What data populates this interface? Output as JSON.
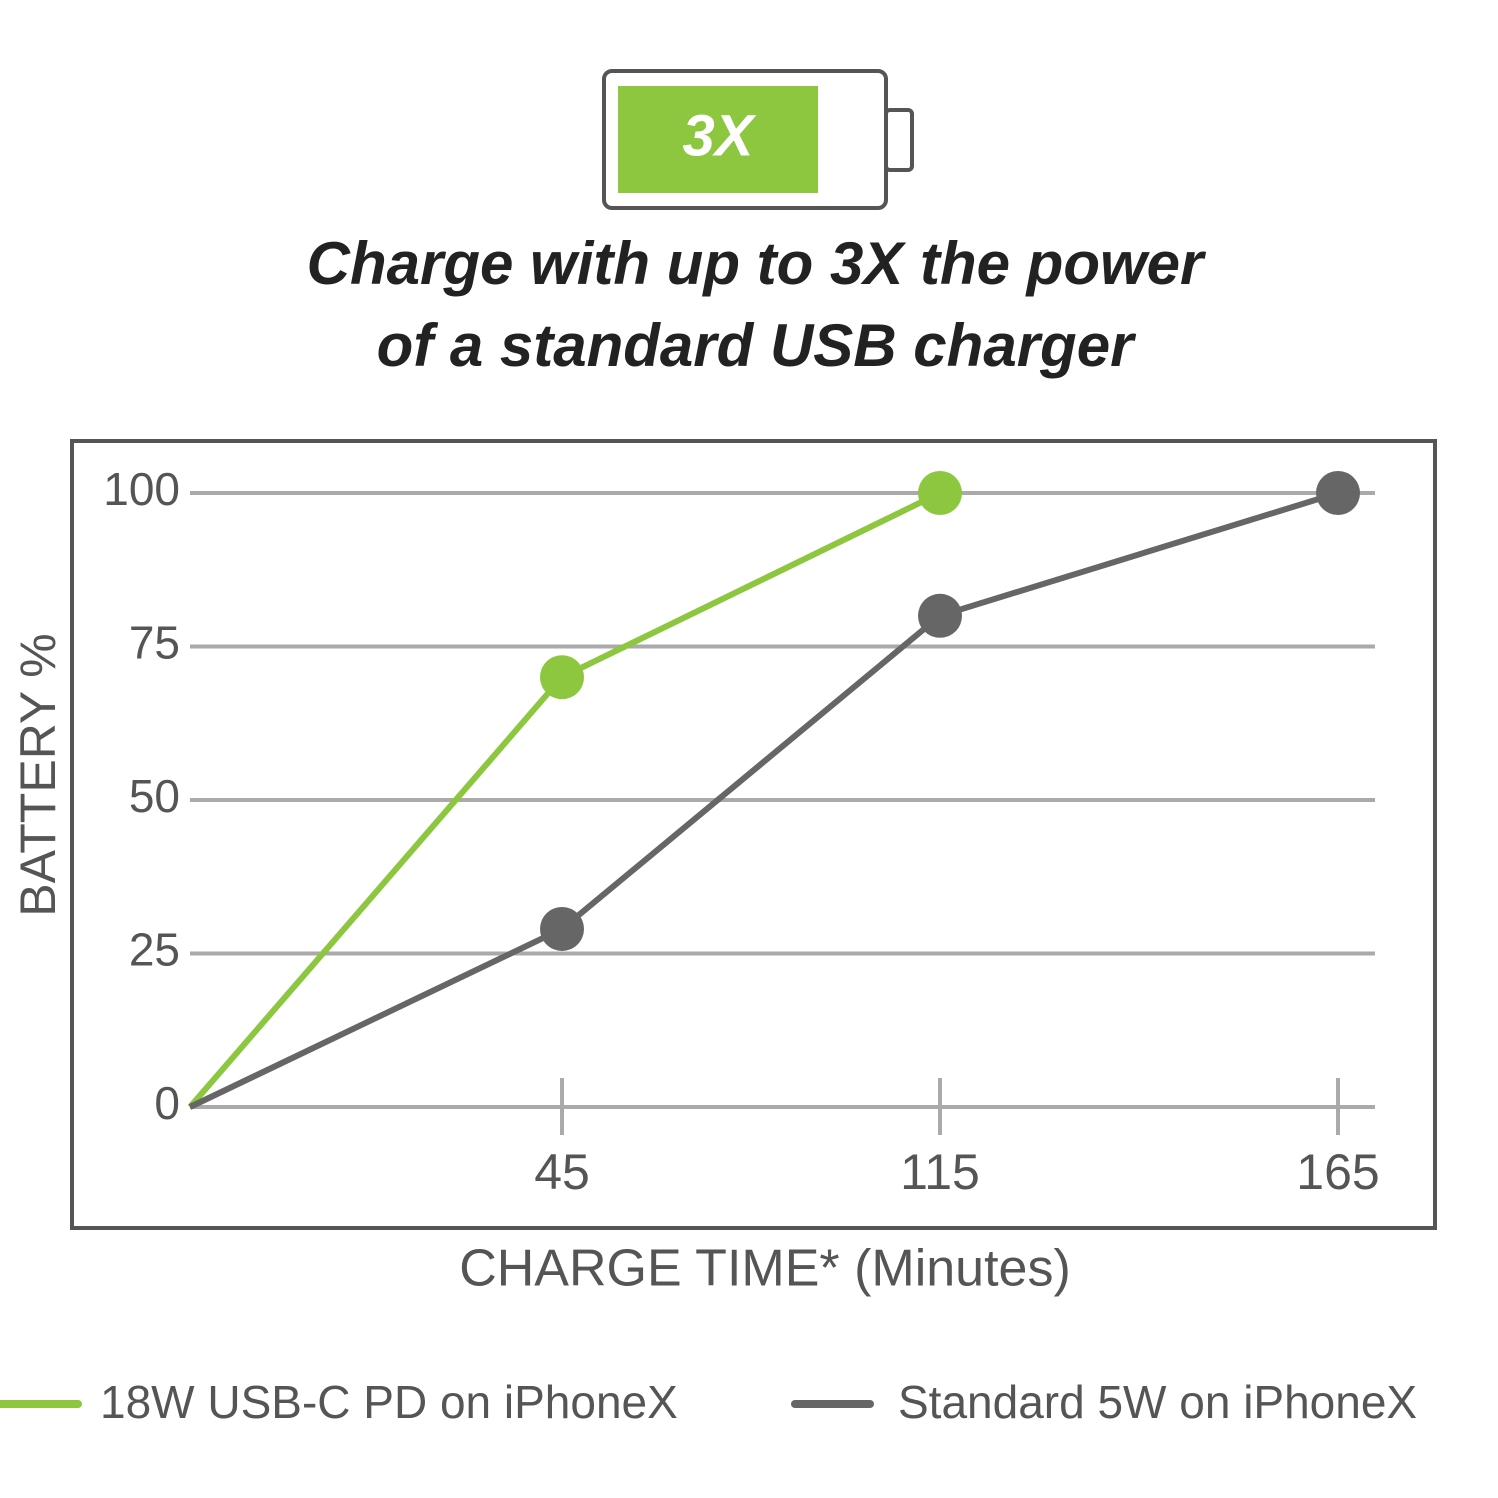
{
  "badge": "3X",
  "chart_data": {
    "type": "line",
    "title": [
      "Charge with up to 3X the power",
      "of a standard USB charger"
    ],
    "x_label": "CHARGE TIME* (Minutes)",
    "y_label": "BATTERY %",
    "categories": [
      null,
      "45",
      "115",
      "165"
    ],
    "series": [
      {
        "name": "18W USB-C PD on iPhoneX",
        "color": "#8dc63f",
        "values": [
          0,
          70,
          100,
          null
        ]
      },
      {
        "name": "Standard 5W on iPhoneX",
        "color": "#666666",
        "values": [
          0,
          29,
          80,
          100
        ]
      }
    ],
    "ylim": [
      0,
      100
    ],
    "yticks": [
      0,
      25,
      50,
      75,
      100
    ],
    "grid": true,
    "legend": "bottom"
  }
}
